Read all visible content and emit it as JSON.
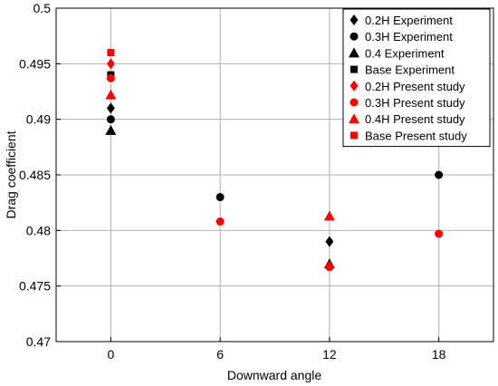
{
  "chart_data": {
    "type": "scatter",
    "xlabel": "Downward angle",
    "ylabel": "Drag coefficient",
    "xlim": [
      -3,
      21
    ],
    "ylim": [
      0.47,
      0.5
    ],
    "x_ticks": [
      0,
      6,
      12,
      18
    ],
    "y_ticks": [
      0.47,
      0.475,
      0.48,
      0.485,
      0.49,
      0.495,
      0.5
    ],
    "y_tick_labels": [
      "0.47",
      "0.475",
      "0.48",
      "0.485",
      "0.49",
      "0.495",
      "0.5"
    ],
    "grid": true,
    "legend_position": "top-right",
    "series": [
      {
        "name": "0.2H Experiment",
        "marker": "diamond",
        "color": "#000000",
        "points": [
          {
            "x": 0,
            "y": 0.491
          },
          {
            "x": 12,
            "y": 0.479
          }
        ]
      },
      {
        "name": "0.3H Experiment",
        "marker": "circle",
        "color": "#000000",
        "points": [
          {
            "x": 0,
            "y": 0.49
          },
          {
            "x": 6,
            "y": 0.483
          },
          {
            "x": 18,
            "y": 0.485
          }
        ]
      },
      {
        "name": "0.4 Experiment",
        "marker": "triangle",
        "color": "#000000",
        "points": [
          {
            "x": 0,
            "y": 0.489
          },
          {
            "x": 12,
            "y": 0.477
          }
        ]
      },
      {
        "name": "Base Experiment",
        "marker": "square",
        "color": "#000000",
        "points": [
          {
            "x": 0,
            "y": 0.494
          }
        ]
      },
      {
        "name": "0.2H Present study",
        "marker": "diamond",
        "color": "#ff0000",
        "points": [
          {
            "x": 0,
            "y": 0.495
          },
          {
            "x": 12,
            "y": 0.4768
          }
        ]
      },
      {
        "name": "0.3H Present study",
        "marker": "circle",
        "color": "#ff0000",
        "points": [
          {
            "x": 0,
            "y": 0.4937
          },
          {
            "x": 6,
            "y": 0.4808
          },
          {
            "x": 12,
            "y": 0.4767
          },
          {
            "x": 18,
            "y": 0.4797
          }
        ]
      },
      {
        "name": "0.4H Present study",
        "marker": "triangle",
        "color": "#ff0000",
        "points": [
          {
            "x": 0,
            "y": 0.4922
          },
          {
            "x": 12,
            "y": 0.4813
          }
        ]
      },
      {
        "name": "Base Present study",
        "marker": "square",
        "color": "#ff0000",
        "points": [
          {
            "x": 0,
            "y": 0.496
          }
        ]
      }
    ]
  }
}
